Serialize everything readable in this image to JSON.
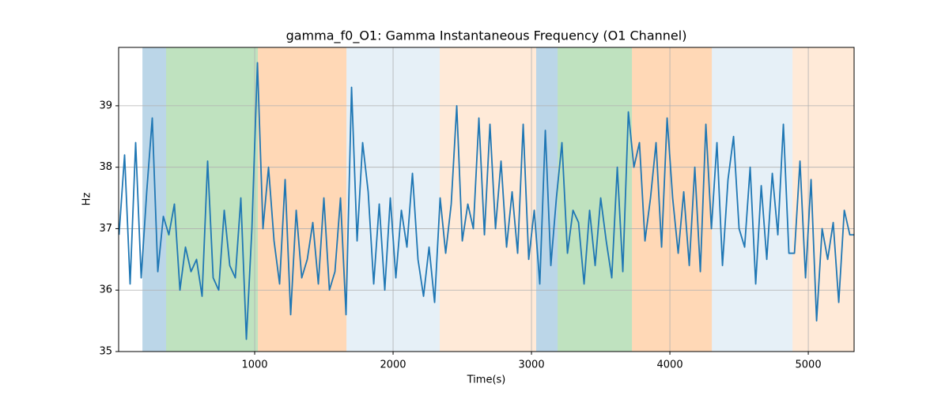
{
  "chart_data": {
    "type": "line",
    "title": "gamma_f0_O1: Gamma Instantaneous Frequency (O1 Channel)",
    "xlabel": "Time(s)",
    "ylabel": "Hz",
    "xlim": [
      17,
      5331
    ],
    "ylim": [
      35,
      39.95
    ],
    "xticks": [
      1000,
      2000,
      3000,
      4000,
      5000
    ],
    "yticks": [
      35,
      36,
      37,
      38,
      39
    ],
    "grid": true,
    "spans": [
      {
        "start": 189,
        "end": 360,
        "color": "rgba(31,119,180,0.3)"
      },
      {
        "start": 360,
        "end": 1023,
        "color": "rgba(44,160,44,0.3)"
      },
      {
        "start": 1023,
        "end": 1663,
        "color": "rgba(255,127,14,0.3)"
      },
      {
        "start": 1663,
        "end": 2337,
        "color": "rgba(31,119,180,0.11)"
      },
      {
        "start": 2337,
        "end": 3034,
        "color": "rgba(255,127,14,0.16)"
      },
      {
        "start": 3034,
        "end": 3189,
        "color": "rgba(31,119,180,0.3)"
      },
      {
        "start": 3189,
        "end": 3726,
        "color": "rgba(44,160,44,0.3)"
      },
      {
        "start": 3726,
        "end": 4303,
        "color": "rgba(255,127,14,0.3)"
      },
      {
        "start": 4303,
        "end": 4886,
        "color": "rgba(31,119,180,0.11)"
      },
      {
        "start": 4886,
        "end": 5331,
        "color": "rgba(255,127,14,0.16)"
      }
    ],
    "x": [
      20,
      60,
      100,
      140,
      180,
      220,
      260,
      300,
      340,
      380,
      420,
      460,
      500,
      540,
      580,
      620,
      660,
      700,
      740,
      780,
      820,
      860,
      900,
      940,
      980,
      1020,
      1060,
      1100,
      1140,
      1180,
      1220,
      1260,
      1300,
      1340,
      1380,
      1420,
      1460,
      1500,
      1540,
      1580,
      1620,
      1660,
      1700,
      1740,
      1780,
      1820,
      1860,
      1900,
      1940,
      1980,
      2020,
      2060,
      2100,
      2140,
      2180,
      2220,
      2260,
      2300,
      2340,
      2380,
      2420,
      2460,
      2500,
      2540,
      2580,
      2620,
      2660,
      2700,
      2740,
      2780,
      2820,
      2860,
      2900,
      2940,
      2980,
      3020,
      3060,
      3100,
      3140,
      3180,
      3220,
      3260,
      3300,
      3340,
      3380,
      3420,
      3460,
      3500,
      3540,
      3580,
      3620,
      3660,
      3700,
      3740,
      3780,
      3820,
      3860,
      3900,
      3940,
      3980,
      4020,
      4060,
      4100,
      4140,
      4180,
      4220,
      4260,
      4300,
      4340,
      4380,
      4420,
      4460,
      4500,
      4540,
      4580,
      4620,
      4660,
      4700,
      4740,
      4780,
      4820,
      4860,
      4900,
      4940,
      4980,
      5020,
      5060,
      5100,
      5140,
      5180,
      5220,
      5260,
      5300,
      5330
    ],
    "series": [
      {
        "color": "#1f77b4",
        "values": [
          36.9,
          38.2,
          36.1,
          38.4,
          36.2,
          37.6,
          38.8,
          36.3,
          37.2,
          36.9,
          37.4,
          36.0,
          36.7,
          36.3,
          36.5,
          35.9,
          38.1,
          36.2,
          36.0,
          37.3,
          36.4,
          36.2,
          37.5,
          35.2,
          37.0,
          39.7,
          37.0,
          38.0,
          36.8,
          36.1,
          37.8,
          35.6,
          37.3,
          36.2,
          36.5,
          37.1,
          36.1,
          37.5,
          36.0,
          36.3,
          37.5,
          35.6,
          39.3,
          36.8,
          38.4,
          37.6,
          36.1,
          37.4,
          36.0,
          37.5,
          36.2,
          37.3,
          36.7,
          37.9,
          36.5,
          35.9,
          36.7,
          35.8,
          37.5,
          36.6,
          37.4,
          39.0,
          36.8,
          37.4,
          37.0,
          38.8,
          36.9,
          38.7,
          37.0,
          38.1,
          36.7,
          37.6,
          36.6,
          38.7,
          36.5,
          37.3,
          36.1,
          38.6,
          36.4,
          37.5,
          38.4,
          36.6,
          37.3,
          37.1,
          36.1,
          37.3,
          36.4,
          37.5,
          36.8,
          36.2,
          38.0,
          36.3,
          38.9,
          38.0,
          38.4,
          36.8,
          37.5,
          38.4,
          36.7,
          38.8,
          37.5,
          36.6,
          37.6,
          36.4,
          38.0,
          36.3,
          38.7,
          37.0,
          38.4,
          36.4,
          37.8,
          38.5,
          37.0,
          36.7,
          38.0,
          36.1,
          37.7,
          36.5,
          37.9,
          36.9,
          38.7,
          36.6,
          36.6,
          38.1,
          36.2,
          37.8,
          35.5,
          37.0,
          36.5,
          37.1,
          35.8,
          37.3,
          36.9,
          36.9
        ]
      }
    ]
  }
}
